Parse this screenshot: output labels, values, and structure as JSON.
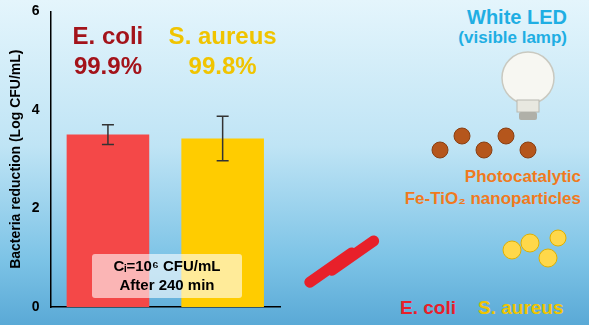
{
  "chart_data": {
    "type": "bar",
    "categories": [
      "E. coli",
      "S. aureus"
    ],
    "values": [
      3.5,
      3.42
    ],
    "errors": [
      0.2,
      0.45
    ],
    "colors": [
      "#f44848",
      "#ffcc00"
    ],
    "bar_labels": [
      "99.9%",
      "99.8%"
    ],
    "y_label": "Bacteria reduction (Log CFU/mL)",
    "ylim": [
      0,
      6
    ],
    "yticks": [
      0,
      2,
      4,
      6
    ],
    "grid": false,
    "tick_labels": "y",
    "annotations": [
      "White LED",
      "(visible lamp)",
      "Photocatalytic",
      "Fe-TiO₂ nanoparticles",
      "Cᵢ=10⁶ CFU/mL",
      "After 240 min",
      "E. coli",
      "S. aureus"
    ]
  }
}
